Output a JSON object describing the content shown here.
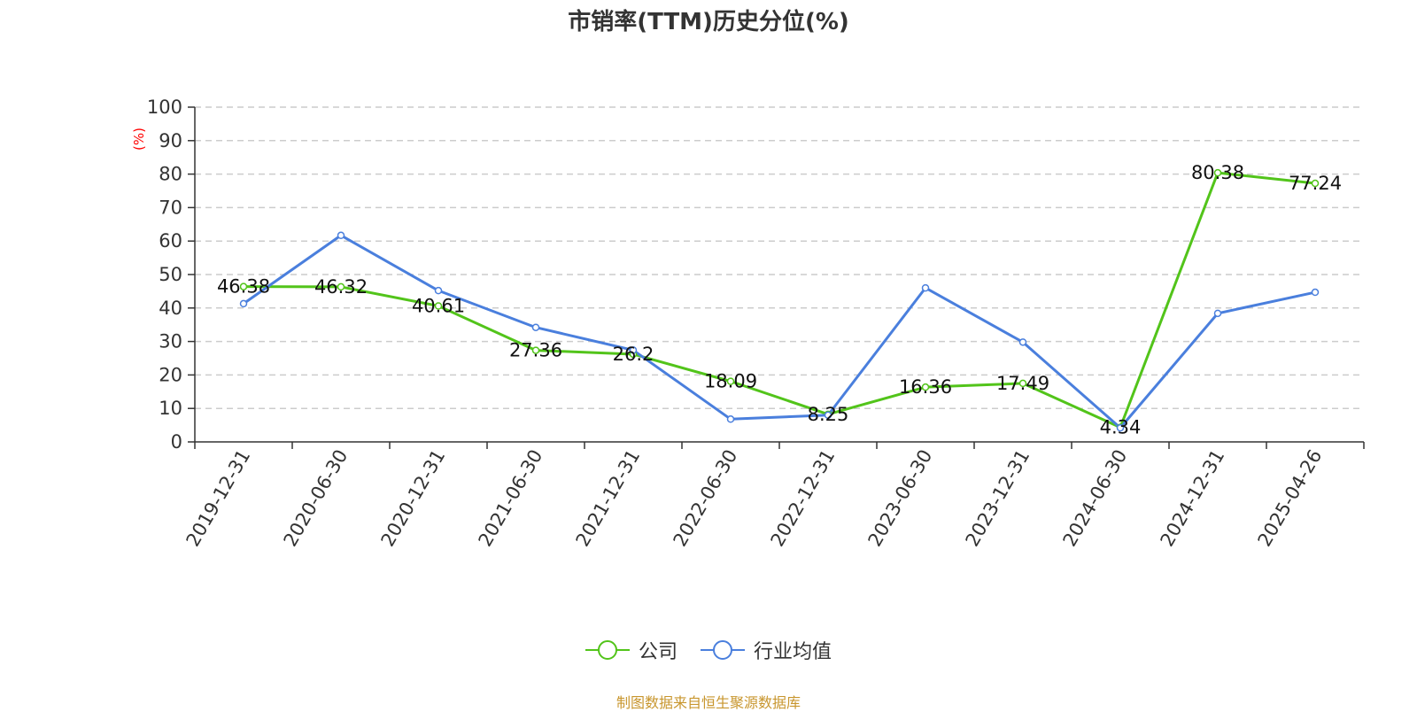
{
  "chart_data": {
    "type": "line",
    "title": "市销率(TTM)历史分位(%)",
    "ylabel": "(%)",
    "xlabel": "",
    "ylim": [
      0,
      100
    ],
    "yticks": [
      0,
      10,
      20,
      30,
      40,
      50,
      60,
      70,
      80,
      90,
      100
    ],
    "categories": [
      "2019-12-31",
      "2020-06-30",
      "2020-12-31",
      "2021-06-30",
      "2021-12-31",
      "2022-06-30",
      "2022-12-31",
      "2023-06-30",
      "2023-12-31",
      "2024-06-30",
      "2024-12-31",
      "2025-04-26"
    ],
    "series": [
      {
        "name": "公司",
        "color": "#52c41a",
        "values": [
          46.38,
          46.32,
          40.61,
          27.36,
          26.2,
          18.09,
          8.25,
          16.36,
          17.49,
          4.34,
          80.38,
          77.24
        ],
        "labels": [
          "46.38",
          "46.32",
          "40.61",
          "27.36",
          "26.2",
          "18.09",
          "8.25",
          "16.36",
          "17.49",
          "4.34",
          "80.38",
          "77.24"
        ]
      },
      {
        "name": "行业均值",
        "color": "#4a7fdd",
        "values": [
          41.3,
          61.7,
          45.2,
          34.2,
          27.4,
          6.8,
          8.0,
          46.0,
          29.8,
          4.2,
          38.4,
          44.7
        ]
      }
    ],
    "grid": true,
    "legend_position": "bottom-center"
  },
  "footer": {
    "source_text": "制图数据来自恒生聚源数据库"
  }
}
